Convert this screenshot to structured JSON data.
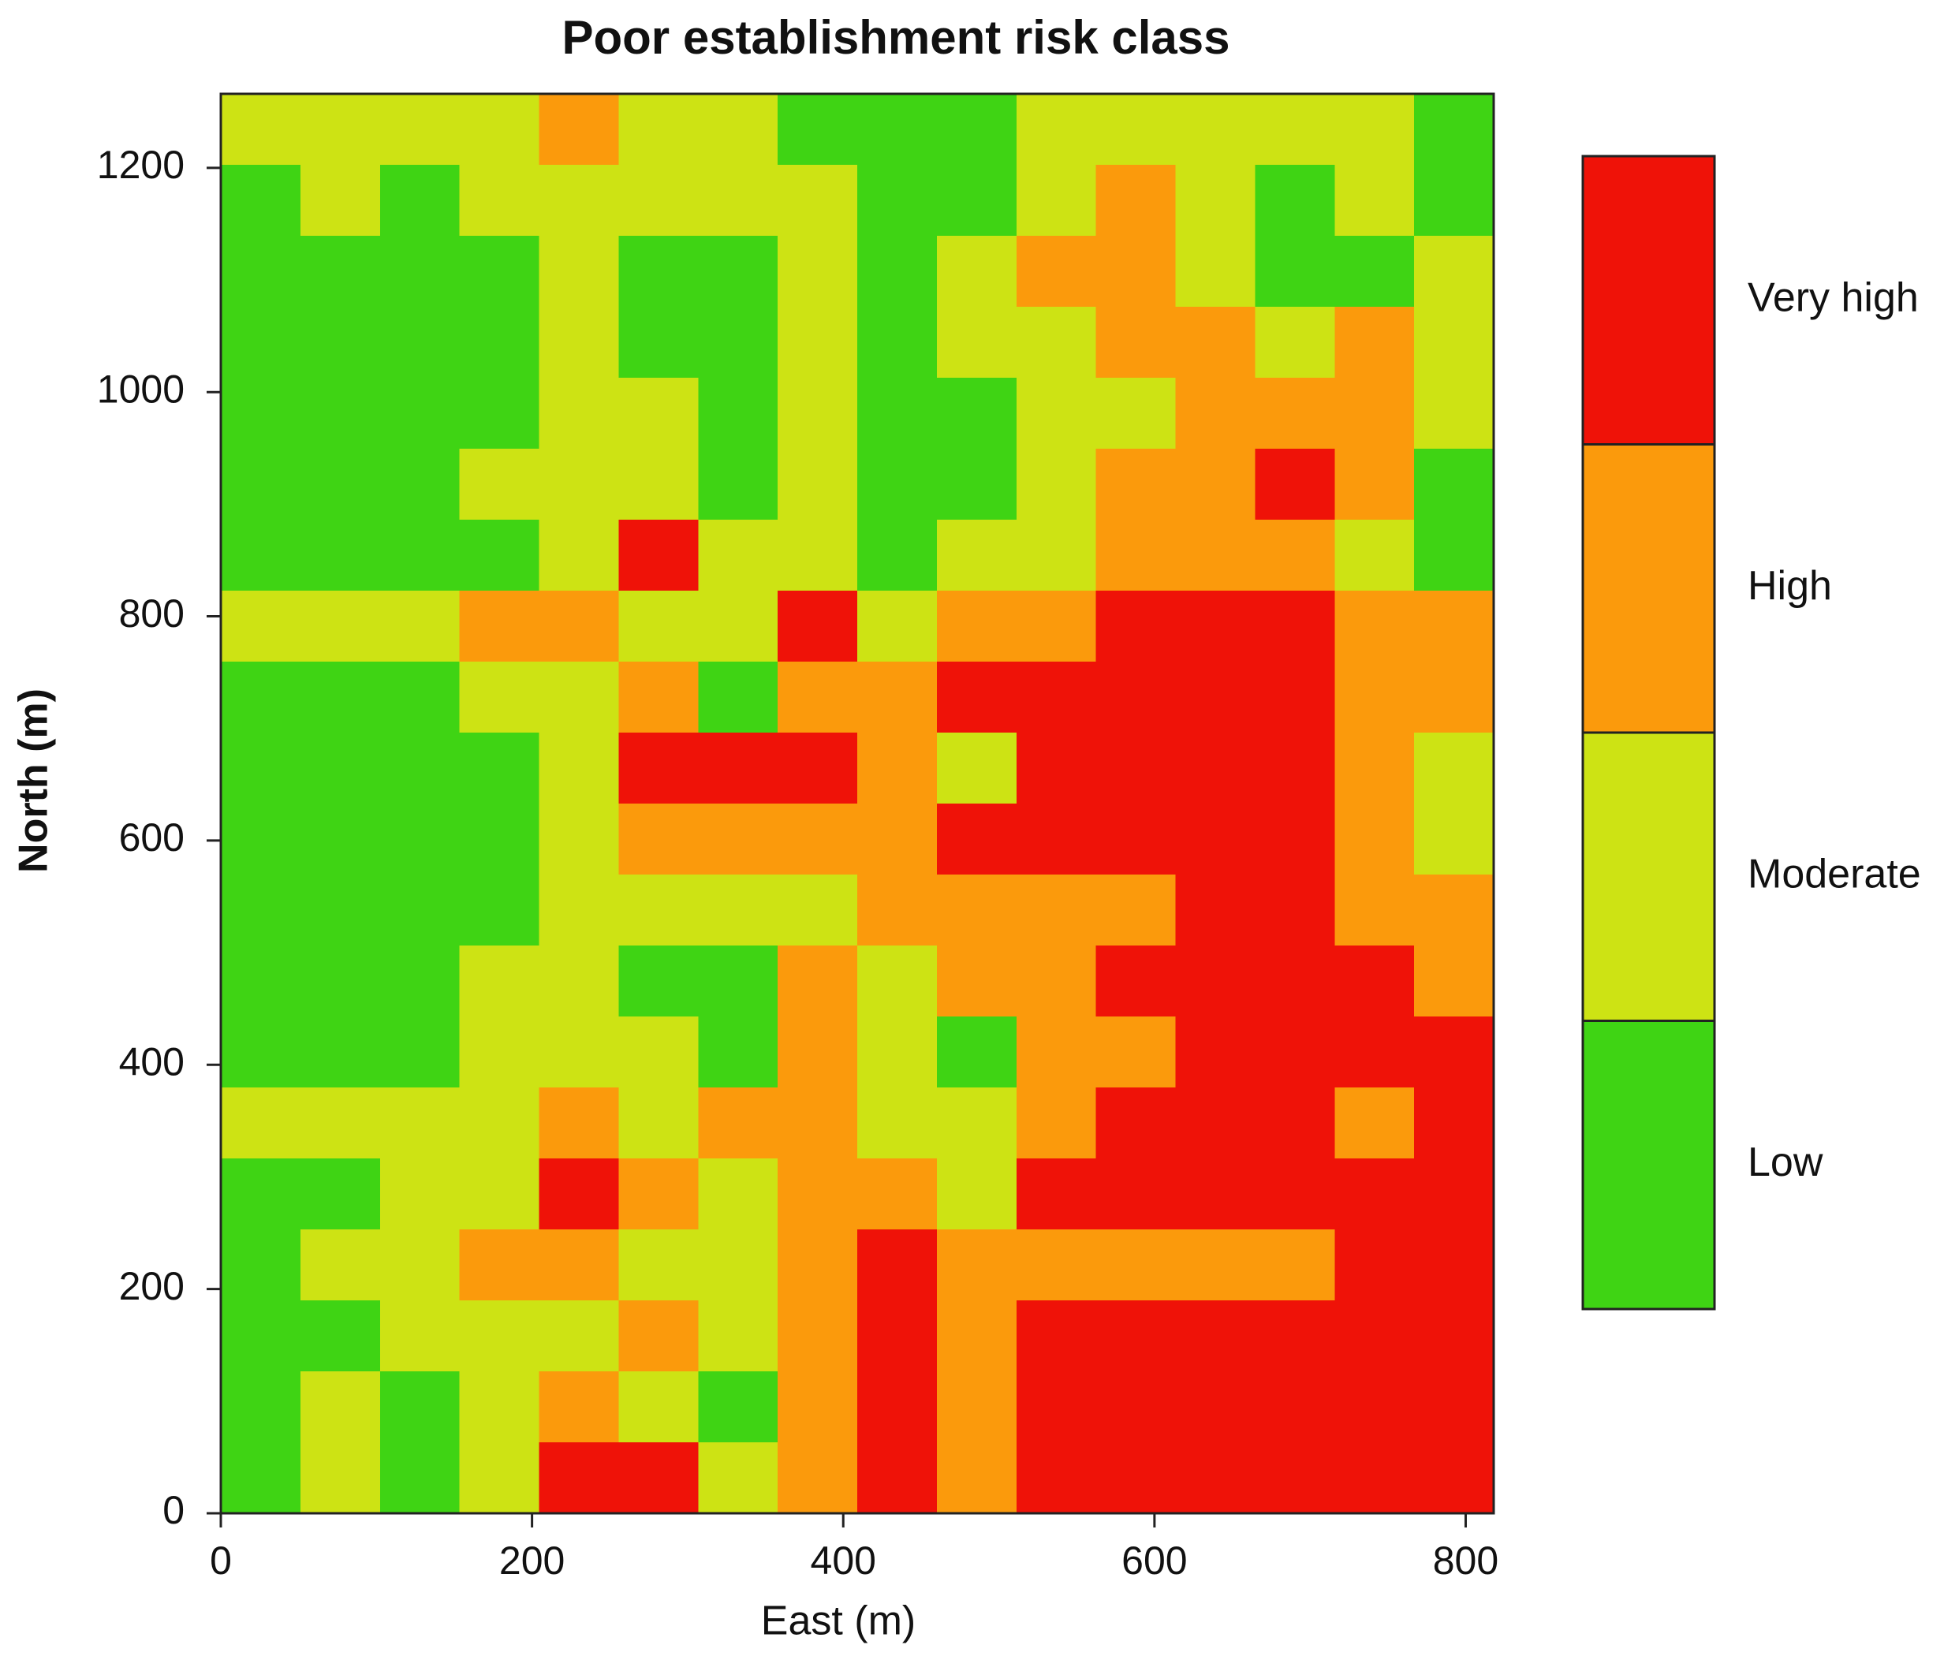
{
  "chart_data": {
    "type": "raster",
    "title": "Poor establishment risk class",
    "x_label": "East (m)",
    "y_label": "North (m)",
    "xlim": [
      0,
      818
    ],
    "ylim": [
      0,
      1266
    ],
    "xticks": [
      0,
      200,
      400,
      600,
      800
    ],
    "yticks": [
      0,
      200,
      400,
      600,
      800,
      1000,
      1200
    ],
    "legend": [
      {
        "value": 1,
        "name": "Low",
        "color": "#3fd414"
      },
      {
        "value": 2,
        "name": "Moderate",
        "color": "#cde314"
      },
      {
        "value": 3,
        "name": "High",
        "color": "#fb9a0c"
      },
      {
        "value": 4,
        "name": "Very high",
        "color": "#ef1208"
      }
    ],
    "z": [
      [
        2,
        2,
        2,
        2,
        3,
        2,
        2,
        1,
        1,
        1,
        2,
        2,
        2,
        2,
        2,
        1
      ],
      [
        1,
        2,
        1,
        2,
        2,
        2,
        2,
        2,
        1,
        1,
        2,
        3,
        2,
        1,
        2,
        1
      ],
      [
        1,
        1,
        1,
        1,
        2,
        1,
        1,
        2,
        1,
        2,
        3,
        3,
        2,
        1,
        1,
        2
      ],
      [
        1,
        1,
        1,
        1,
        2,
        1,
        1,
        2,
        1,
        2,
        2,
        3,
        3,
        2,
        3,
        2
      ],
      [
        1,
        1,
        1,
        1,
        2,
        2,
        1,
        2,
        1,
        1,
        2,
        2,
        3,
        3,
        3,
        2
      ],
      [
        1,
        1,
        1,
        2,
        2,
        2,
        1,
        2,
        1,
        1,
        2,
        3,
        3,
        4,
        3,
        1
      ],
      [
        1,
        1,
        1,
        1,
        2,
        4,
        2,
        2,
        1,
        2,
        2,
        3,
        3,
        3,
        2,
        1
      ],
      [
        2,
        2,
        2,
        3,
        3,
        2,
        2,
        4,
        2,
        3,
        3,
        4,
        4,
        4,
        3,
        3
      ],
      [
        1,
        1,
        1,
        2,
        2,
        3,
        1,
        3,
        3,
        4,
        4,
        4,
        4,
        4,
        3,
        3
      ],
      [
        1,
        1,
        1,
        1,
        2,
        4,
        4,
        4,
        3,
        2,
        4,
        4,
        4,
        4,
        3,
        2
      ],
      [
        1,
        1,
        1,
        1,
        2,
        3,
        3,
        3,
        3,
        4,
        4,
        4,
        4,
        4,
        3,
        2
      ],
      [
        1,
        1,
        1,
        1,
        2,
        2,
        2,
        2,
        3,
        3,
        3,
        3,
        4,
        4,
        3,
        3
      ],
      [
        1,
        1,
        1,
        2,
        2,
        1,
        1,
        3,
        2,
        3,
        3,
        4,
        4,
        4,
        4,
        3
      ],
      [
        1,
        1,
        1,
        2,
        2,
        2,
        1,
        3,
        2,
        1,
        3,
        3,
        4,
        4,
        4,
        4
      ],
      [
        2,
        2,
        2,
        2,
        3,
        2,
        3,
        3,
        2,
        2,
        3,
        4,
        4,
        4,
        3,
        4
      ],
      [
        1,
        1,
        2,
        2,
        4,
        3,
        2,
        3,
        3,
        2,
        4,
        4,
        4,
        4,
        4,
        4
      ],
      [
        1,
        2,
        2,
        3,
        3,
        2,
        2,
        3,
        4,
        3,
        3,
        3,
        3,
        3,
        4,
        4
      ],
      [
        1,
        1,
        2,
        2,
        2,
        3,
        2,
        3,
        4,
        3,
        4,
        4,
        4,
        4,
        4,
        4
      ],
      [
        1,
        2,
        1,
        2,
        3,
        2,
        1,
        3,
        4,
        3,
        4,
        4,
        4,
        4,
        4,
        4
      ],
      [
        1,
        2,
        1,
        2,
        4,
        4,
        2,
        3,
        4,
        3,
        4,
        4,
        4,
        4,
        4,
        4
      ]
    ]
  }
}
